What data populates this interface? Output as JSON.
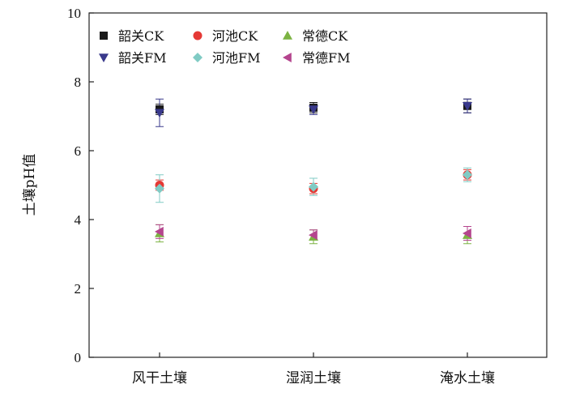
{
  "chart_data": {
    "type": "scatter",
    "title": "",
    "xlabel": "",
    "ylabel": "土壤pH值",
    "categories": [
      "风干土壤",
      "湿润土壤",
      "淹水土壤"
    ],
    "ylim": [
      0,
      10
    ],
    "yticks": [
      0,
      2,
      4,
      6,
      8,
      10
    ],
    "grid": false,
    "legend_position": "top-left",
    "series": [
      {
        "name": "韶关CK",
        "marker": "square",
        "color": "#1a1a1a",
        "values": [
          7.2,
          7.25,
          7.3
        ],
        "errors": [
          0.15,
          0.15,
          0.2
        ]
      },
      {
        "name": "河池CK",
        "marker": "circle",
        "color": "#e53935",
        "values": [
          5.0,
          4.9,
          5.3
        ],
        "errors": [
          0.15,
          0.15,
          0.15
        ]
      },
      {
        "name": "常德CK",
        "marker": "triangle-up",
        "color": "#7cb342",
        "values": [
          3.6,
          3.5,
          3.55
        ],
        "errors": [
          0.25,
          0.2,
          0.25
        ]
      },
      {
        "name": "韶关FM",
        "marker": "triangle-down",
        "color": "#3a3a8c",
        "values": [
          7.1,
          7.2,
          7.3
        ],
        "errors": [
          0.4,
          0.15,
          0.2
        ]
      },
      {
        "name": "河池FM",
        "marker": "diamond",
        "color": "#80cbc4",
        "values": [
          4.9,
          4.95,
          5.3
        ],
        "errors": [
          0.4,
          0.25,
          0.2
        ]
      },
      {
        "name": "常德FM",
        "marker": "triangle-left",
        "color": "#b5458e",
        "values": [
          3.65,
          3.55,
          3.6
        ],
        "errors": [
          0.2,
          0.15,
          0.2
        ]
      }
    ]
  }
}
